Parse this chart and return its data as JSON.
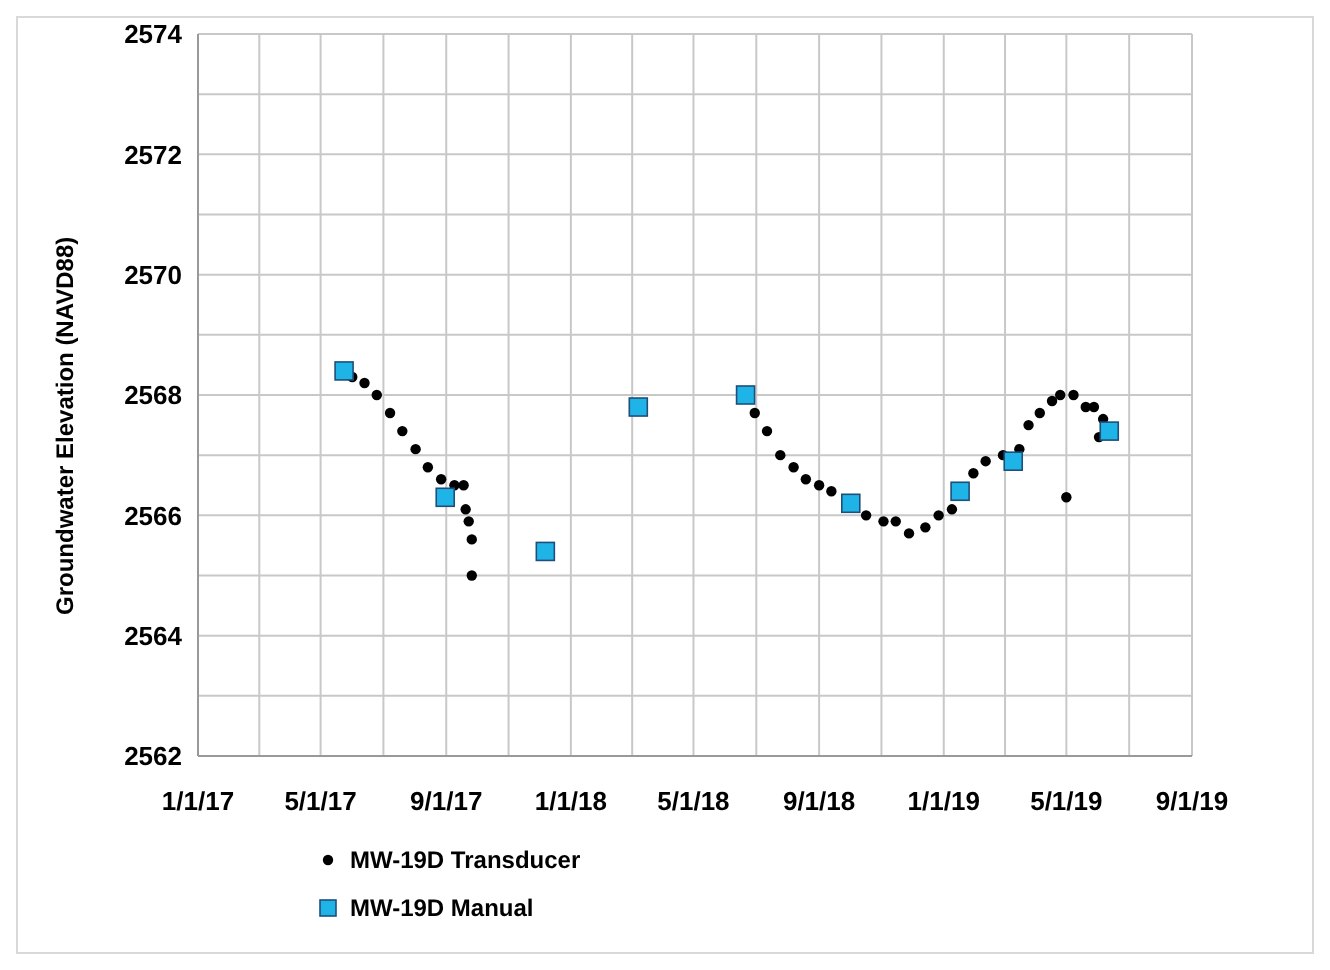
{
  "chart_data": {
    "type": "scatter",
    "ylabel": "Groundwater Elevation (NAVD88)",
    "xlim": [
      "2017-01-01",
      "2019-09-01"
    ],
    "xticks": [
      {
        "value": "2017-01-01",
        "label": "1/1/17"
      },
      {
        "value": "2017-05-01",
        "label": "5/1/17"
      },
      {
        "value": "2017-09-01",
        "label": "9/1/17"
      },
      {
        "value": "2018-01-01",
        "label": "1/1/18"
      },
      {
        "value": "2018-05-01",
        "label": "5/1/18"
      },
      {
        "value": "2018-09-01",
        "label": "9/1/18"
      },
      {
        "value": "2019-01-01",
        "label": "1/1/19"
      },
      {
        "value": "2019-05-01",
        "label": "5/1/19"
      },
      {
        "value": "2019-09-01",
        "label": "9/1/19"
      }
    ],
    "ylim": [
      2562,
      2574
    ],
    "yticks": [
      2562,
      2564,
      2566,
      2568,
      2570,
      2572,
      2574
    ],
    "grid": true,
    "legend": "bottom left",
    "series": [
      {
        "name": "MW-19D Transducer",
        "color": "#000000",
        "marker": "circle",
        "x": [
          "2017-06-01",
          "2017-06-13",
          "2017-06-25",
          "2017-07-08",
          "2017-07-20",
          "2017-08-02",
          "2017-08-14",
          "2017-08-27",
          "2017-09-09",
          "2017-09-18",
          "2017-09-20",
          "2017-09-23",
          "2017-09-26",
          "2017-09-26",
          "2018-06-30",
          "2018-07-12",
          "2018-07-25",
          "2018-08-07",
          "2018-08-19",
          "2018-09-01",
          "2018-09-13",
          "2018-10-17",
          "2018-11-03",
          "2018-11-15",
          "2018-11-28",
          "2018-12-14",
          "2018-12-27",
          "2019-01-09",
          "2019-01-30",
          "2019-02-11",
          "2019-02-28",
          "2019-03-16",
          "2019-03-25",
          "2019-04-05",
          "2019-04-17",
          "2019-04-25",
          "2019-05-01",
          "2019-05-08",
          "2019-05-20",
          "2019-05-28",
          "2019-06-02",
          "2019-06-06"
        ],
        "values": [
          2568.3,
          2568.2,
          2568.0,
          2567.7,
          2567.4,
          2567.1,
          2566.8,
          2566.6,
          2566.5,
          2566.5,
          2566.1,
          2565.9,
          2565.6,
          2565.0,
          2567.7,
          2567.4,
          2567.0,
          2566.8,
          2566.6,
          2566.5,
          2566.4,
          2566.0,
          2565.9,
          2565.9,
          2565.7,
          2565.8,
          2566.0,
          2566.1,
          2566.7,
          2566.9,
          2567.0,
          2567.1,
          2567.5,
          2567.7,
          2567.9,
          2568.0,
          2566.3,
          2568.0,
          2567.8,
          2567.8,
          2567.3,
          2567.6
        ]
      },
      {
        "name": "MW-19D Manual",
        "color": "#1fb4e8",
        "marker": "square",
        "x": [
          "2017-05-24",
          "2017-08-31",
          "2017-12-07",
          "2018-03-08",
          "2018-06-21",
          "2018-10-02",
          "2019-01-17",
          "2019-03-10",
          "2019-06-12"
        ],
        "values": [
          2568.4,
          2566.3,
          2565.4,
          2567.8,
          2568.0,
          2566.2,
          2566.4,
          2566.9,
          2567.4
        ]
      }
    ]
  }
}
